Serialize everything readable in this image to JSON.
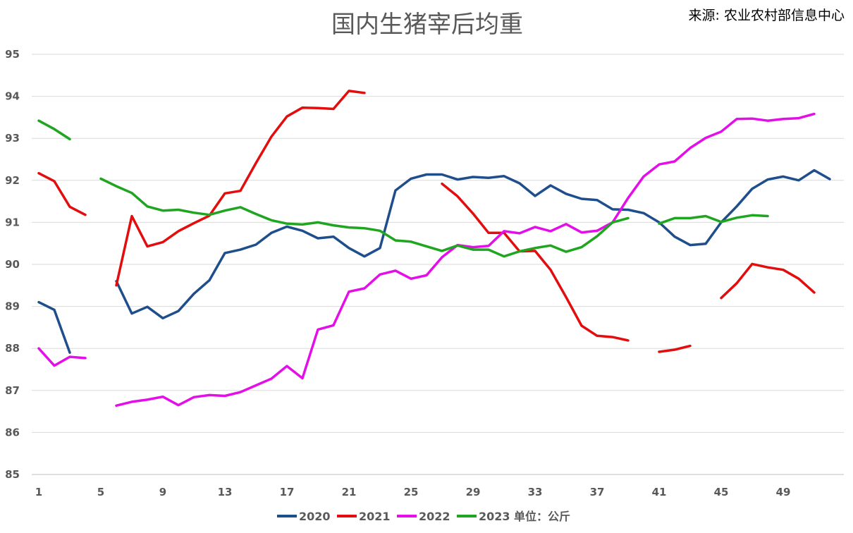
{
  "chart_data": {
    "type": "line",
    "title": "国内生猪宰后均重",
    "source": "来源: 农业农村部信息中心",
    "unit_label": "单位：公斤",
    "xlabel": "",
    "ylabel": "",
    "x_range": [
      1,
      52
    ],
    "x_ticks": [
      1,
      5,
      9,
      13,
      17,
      21,
      25,
      29,
      33,
      37,
      41,
      45,
      49
    ],
    "ylim": [
      85,
      95
    ],
    "y_ticks": [
      85,
      86,
      87,
      88,
      89,
      90,
      91,
      92,
      93,
      94,
      95
    ],
    "grid": true,
    "legend_position": "bottom",
    "series": [
      {
        "name": "2020",
        "color": "#1f4e8c",
        "values": [
          89.1,
          88.92,
          87.9,
          null,
          null,
          89.6,
          88.83,
          88.99,
          88.72,
          88.89,
          89.3,
          89.62,
          90.27,
          90.35,
          90.47,
          90.75,
          90.9,
          90.8,
          90.62,
          90.66,
          90.39,
          90.19,
          90.39,
          91.76,
          92.04,
          92.14,
          92.14,
          92.02,
          92.08,
          92.06,
          92.1,
          91.93,
          91.63,
          91.88,
          91.68,
          91.56,
          91.53,
          91.31,
          91.3,
          91.22,
          91.0,
          90.66,
          90.46,
          90.49,
          91.0,
          91.38,
          91.8,
          92.02,
          92.09,
          92.0,
          92.24,
          92.03
        ]
      },
      {
        "name": "2021",
        "color": "#e30d0d",
        "values": [
          92.17,
          91.98,
          91.37,
          91.18,
          null,
          89.5,
          91.15,
          90.43,
          90.53,
          90.79,
          90.98,
          91.16,
          91.69,
          91.75,
          92.41,
          93.04,
          93.52,
          93.73,
          93.72,
          93.7,
          94.13,
          94.08,
          null,
          null,
          null,
          null,
          91.92,
          91.62,
          91.21,
          90.75,
          90.75,
          90.31,
          90.32,
          89.87,
          89.22,
          88.54,
          88.3,
          88.27,
          88.19,
          null,
          87.92,
          87.97,
          88.06,
          null,
          89.2,
          89.55,
          90.01,
          89.93,
          89.87,
          89.66,
          89.33,
          null
        ]
      },
      {
        "name": "2022",
        "color": "#e40ee8",
        "values": [
          88.0,
          87.59,
          87.8,
          87.77,
          null,
          86.64,
          86.73,
          86.78,
          86.85,
          86.65,
          86.84,
          86.89,
          86.87,
          86.96,
          87.12,
          87.28,
          87.58,
          87.29,
          88.45,
          88.55,
          89.35,
          89.43,
          89.76,
          89.85,
          89.66,
          89.74,
          90.17,
          90.46,
          90.41,
          90.44,
          90.79,
          90.74,
          90.89,
          90.79,
          90.96,
          90.76,
          90.8,
          91.0,
          91.58,
          92.09,
          92.38,
          92.45,
          92.77,
          93.01,
          93.16,
          93.46,
          93.47,
          93.42,
          93.46,
          93.48,
          93.58,
          null
        ]
      },
      {
        "name": "2023",
        "color": "#1fa51f",
        "values": [
          93.42,
          93.22,
          92.98,
          null,
          92.04,
          91.86,
          91.7,
          91.38,
          91.28,
          91.3,
          91.23,
          91.18,
          91.28,
          91.36,
          91.2,
          91.05,
          90.97,
          90.95,
          91.0,
          90.93,
          90.88,
          90.86,
          90.8,
          90.57,
          90.54,
          90.43,
          90.32,
          90.45,
          90.35,
          90.35,
          90.19,
          90.31,
          90.39,
          90.45,
          90.3,
          90.41,
          90.67,
          91.0,
          91.1,
          null,
          90.97,
          91.1,
          91.1,
          91.15,
          91.01,
          91.11,
          91.17,
          91.15,
          null,
          null,
          null,
          null
        ]
      }
    ]
  }
}
